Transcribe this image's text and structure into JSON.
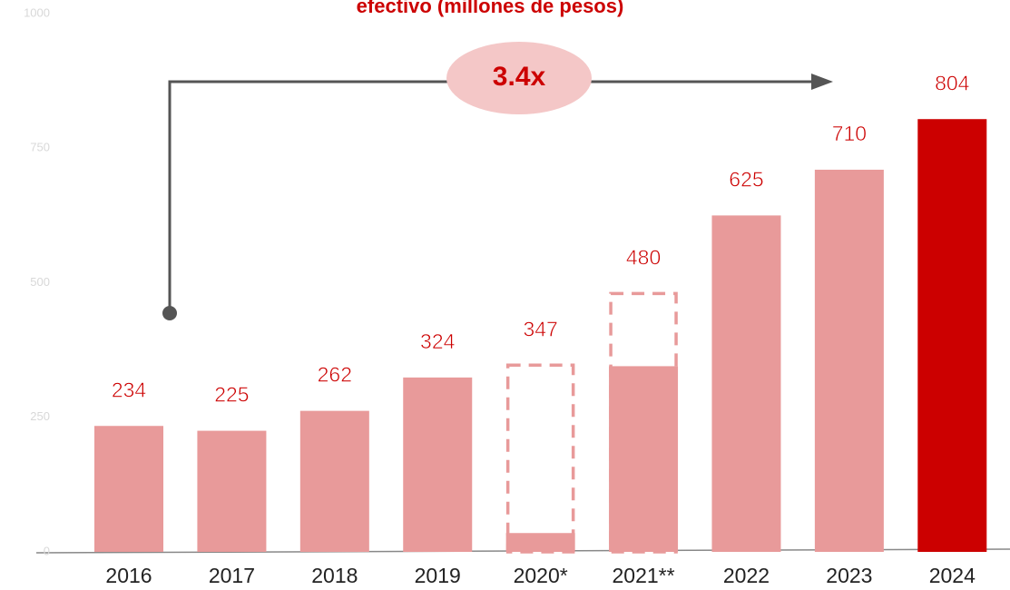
{
  "chart_data": {
    "type": "bar",
    "title": "efectivo (millones de pesos)",
    "categories": [
      "2016",
      "2017",
      "2018",
      "2019",
      "2020*",
      "2021**",
      "2022",
      "2023",
      "2024"
    ],
    "values": [
      234,
      225,
      262,
      324,
      347,
      480,
      625,
      710,
      804
    ],
    "reduced_values": [
      null,
      null,
      null,
      null,
      35,
      345,
      null,
      null,
      null
    ],
    "colors": [
      "#e89a9a",
      "#e89a9a",
      "#e89a9a",
      "#e89a9a",
      "#e89a9a",
      "#e89a9a",
      "#e89a9a",
      "#e89a9a",
      "#cc0000"
    ],
    "outline_color": "#e89a9a",
    "annotation": "3.4x",
    "ylim": [
      0,
      1000
    ],
    "yticks": [
      0,
      250,
      500,
      750,
      1000
    ],
    "grid": false
  }
}
